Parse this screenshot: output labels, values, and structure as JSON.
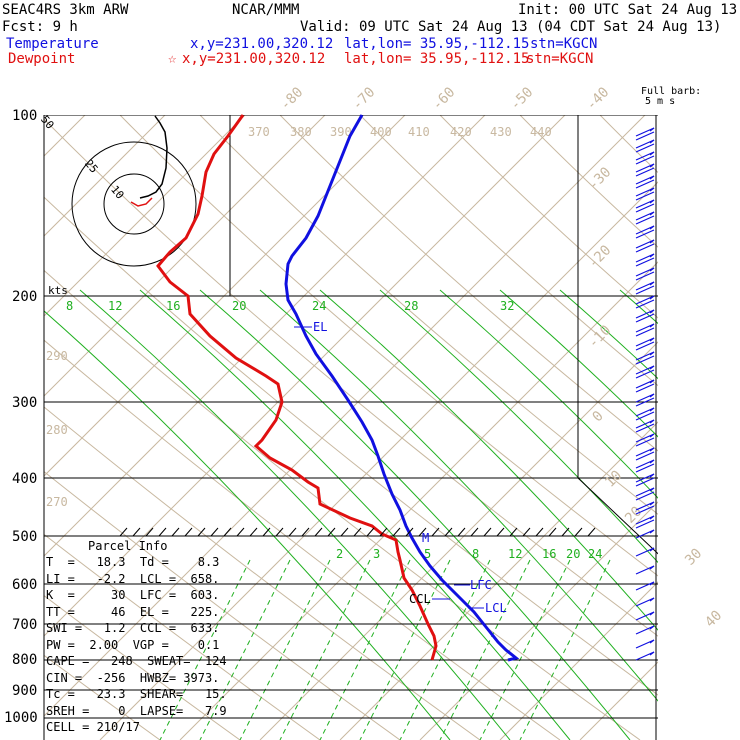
{
  "header": {
    "model": "SEAC4RS  3km ARW",
    "org": "NCAR/MMM",
    "init": "Init: 00 UTC Sat 24 Aug 13",
    "fcst": "Fcst:    9 h",
    "valid": "Valid: 09 UTC Sat 24 Aug 13 (04 CDT Sat 24 Aug 13)",
    "temp_label": "Temperature",
    "temp_loc": "x,y=231.00,320.12",
    "temp_latlon": "lat,lon= 35.95,-112.15",
    "temp_stn": "stn=KGCN",
    "dew_label": "Dewpoint",
    "dew_loc": "x,y=231.00,320.12",
    "dew_latlon": "lat,lon= 35.95,-112.15",
    "dew_stn": "stn=KGCN",
    "barb_note1": "Full barb:",
    "barb_note2": "5 m s"
  },
  "colors": {
    "temperature": "#1010e0",
    "dewpoint": "#e01010",
    "isotherm": "#c8b8a0",
    "mixing_ratio": "#20b020"
  },
  "chart_data": {
    "type": "skew-t",
    "y_scale": "log-pressure",
    "pressure_ticks": [
      "100",
      "200",
      "300",
      "400",
      "500",
      "600",
      "700",
      "800",
      "900",
      "1000"
    ],
    "isotherm_labels": [
      "-80",
      "-70",
      "-60",
      "-50",
      "-40",
      "-30",
      "-20",
      "-10",
      "0",
      "10",
      "20",
      "30",
      "40"
    ],
    "theta_labels": [
      "370",
      "380",
      "390",
      "400",
      "410",
      "420",
      "430",
      "440",
      "290",
      "280",
      "270"
    ],
    "mixing_ratio_labels_upper": [
      "8",
      "12",
      "16",
      "20",
      "24",
      "28",
      "32"
    ],
    "mixing_ratio_labels_lower": [
      "2",
      "3",
      "5",
      "8",
      "12",
      "16",
      "20",
      "24"
    ],
    "levels": {
      "EL": "EL",
      "LFC": "LFC",
      "LCL": "LCL",
      "CCL": "CCL",
      "M": "M"
    },
    "hodograph": {
      "unit": "kts",
      "ring_labels": [
        "50",
        "25",
        "10"
      ]
    }
  },
  "parcel_info": {
    "title": "Parcel Info",
    "rows": [
      "T  =   18.3  Td =    8.3",
      "LI =   -2.2  LCL =  658.",
      "K  =     30  LFC =  603.",
      "TT =     46  EL =   225.",
      "SWI =   1.2  CCL =  633.",
      "PW =  2.00  VGP =    0.1",
      "CAPE =   248  SWEAT=  124",
      "CIN =  -256  HWBZ= 3973.",
      "Tc =   23.3  SHEAR=   15.",
      "SREH =    0  LAPSE=   7.9",
      "CELL = 210/17"
    ]
  }
}
